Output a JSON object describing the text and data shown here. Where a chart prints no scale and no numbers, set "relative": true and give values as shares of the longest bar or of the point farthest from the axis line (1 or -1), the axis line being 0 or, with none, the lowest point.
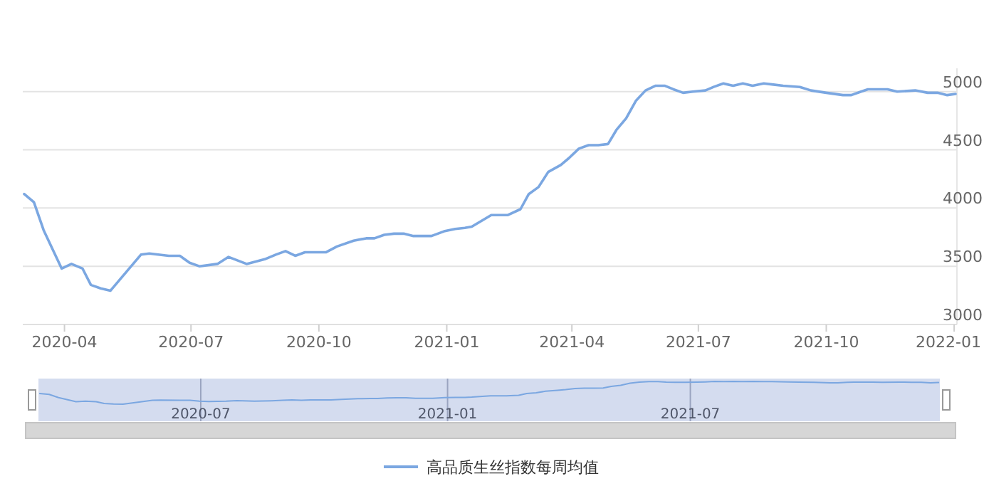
{
  "chart_data": [
    {
      "type": "line",
      "grid": "y",
      "legend": "bottom",
      "line_style": "solid",
      "marker": "none",
      "xlim": [
        "2020-03-02",
        "2022-01-03"
      ],
      "ylim": [
        3000,
        5200
      ],
      "xticks": [
        "2020-04",
        "2020-07",
        "2020-10",
        "2021-01",
        "2021-04",
        "2021-07",
        "2021-10",
        "2022-01"
      ],
      "yticks": [
        3000,
        3500,
        4000,
        4500,
        5000
      ],
      "series": [
        {
          "name": "高品质生丝指数每周均值",
          "color": "#7ba7e1",
          "x": [
            "2020-03-03",
            "2020-03-10",
            "2020-03-17",
            "2020-03-30",
            "2020-04-06",
            "2020-04-14",
            "2020-04-20",
            "2020-04-27",
            "2020-05-04",
            "2020-05-26",
            "2020-06-01",
            "2020-06-15",
            "2020-06-23",
            "2020-06-30",
            "2020-07-07",
            "2020-07-20",
            "2020-07-28",
            "2020-08-10",
            "2020-08-23",
            "2020-08-31",
            "2020-09-07",
            "2020-09-14",
            "2020-09-21",
            "2020-09-29",
            "2020-10-06",
            "2020-10-14",
            "2020-10-26",
            "2020-11-04",
            "2020-11-10",
            "2020-11-17",
            "2020-11-24",
            "2020-12-01",
            "2020-12-08",
            "2020-12-15",
            "2020-12-21",
            "2020-12-30",
            "2021-01-07",
            "2021-01-14",
            "2021-01-19",
            "2021-02-02",
            "2021-02-07",
            "2021-02-14",
            "2021-02-23",
            "2021-03-01",
            "2021-03-08",
            "2021-03-15",
            "2021-03-24",
            "2021-03-30",
            "2021-04-06",
            "2021-04-13",
            "2021-04-20",
            "2021-04-27",
            "2021-05-03",
            "2021-05-10",
            "2021-05-17",
            "2021-05-24",
            "2021-05-31",
            "2021-06-07",
            "2021-06-13",
            "2021-06-20",
            "2021-06-27",
            "2021-07-06",
            "2021-07-12",
            "2021-07-19",
            "2021-07-26",
            "2021-08-02",
            "2021-08-09",
            "2021-08-17",
            "2021-08-24",
            "2021-08-31",
            "2021-09-12",
            "2021-09-20",
            "2021-10-01",
            "2021-10-13",
            "2021-10-19",
            "2021-10-26",
            "2021-10-31",
            "2021-11-14",
            "2021-11-21",
            "2021-12-04",
            "2021-12-13",
            "2021-12-20",
            "2021-12-27",
            "2022-01-02"
          ],
          "values": [
            4120,
            4050,
            3810,
            3480,
            3520,
            3480,
            3340,
            3310,
            3290,
            3600,
            3610,
            3590,
            3590,
            3530,
            3500,
            3520,
            3580,
            3520,
            3560,
            3600,
            3630,
            3590,
            3620,
            3620,
            3620,
            3670,
            3720,
            3740,
            3740,
            3770,
            3780,
            3780,
            3760,
            3760,
            3760,
            3800,
            3820,
            3830,
            3840,
            3940,
            3940,
            3940,
            3990,
            4120,
            4180,
            4310,
            4370,
            4430,
            4510,
            4540,
            4540,
            4550,
            4670,
            4770,
            4920,
            5010,
            5050,
            5050,
            5020,
            4990,
            5000,
            5010,
            5040,
            5070,
            5050,
            5070,
            5050,
            5070,
            5060,
            5050,
            5040,
            5010,
            4990,
            4970,
            4970,
            5000,
            5020,
            5020,
            5000,
            5010,
            4990,
            4990,
            4970,
            4980
          ]
        }
      ]
    },
    {
      "type": "line",
      "tick_labels": "x",
      "grid": "x",
      "line_style": "solid",
      "marker": "none",
      "relative": true,
      "xlim": [
        "2020-03-02",
        "2022-01-03"
      ],
      "xticks": [
        "2020-07",
        "2021-01",
        "2021-07"
      ],
      "series": [
        {
          "color": "#7ba7e1",
          "x": [
            "2020-03-03",
            "2020-03-10",
            "2020-03-17",
            "2020-03-30",
            "2020-04-06",
            "2020-04-14",
            "2020-04-20",
            "2020-04-27",
            "2020-05-04",
            "2020-05-26",
            "2020-06-01",
            "2020-06-15",
            "2020-06-23",
            "2020-06-30",
            "2020-07-07",
            "2020-07-20",
            "2020-07-28",
            "2020-08-10",
            "2020-08-23",
            "2020-08-31",
            "2020-09-07",
            "2020-09-14",
            "2020-09-21",
            "2020-09-29",
            "2020-10-06",
            "2020-10-14",
            "2020-10-26",
            "2020-11-04",
            "2020-11-10",
            "2020-11-17",
            "2020-11-24",
            "2020-12-01",
            "2020-12-08",
            "2020-12-15",
            "2020-12-21",
            "2020-12-30",
            "2021-01-07",
            "2021-01-14",
            "2021-01-19",
            "2021-02-02",
            "2021-02-07",
            "2021-02-14",
            "2021-02-23",
            "2021-03-01",
            "2021-03-08",
            "2021-03-15",
            "2021-03-24",
            "2021-03-30",
            "2021-04-06",
            "2021-04-13",
            "2021-04-20",
            "2021-04-27",
            "2021-05-03",
            "2021-05-10",
            "2021-05-17",
            "2021-05-24",
            "2021-05-31",
            "2021-06-07",
            "2021-06-13",
            "2021-06-20",
            "2021-06-27",
            "2021-07-06",
            "2021-07-12",
            "2021-07-19",
            "2021-07-26",
            "2021-08-02",
            "2021-08-09",
            "2021-08-17",
            "2021-08-24",
            "2021-08-31",
            "2021-09-12",
            "2021-09-20",
            "2021-10-01",
            "2021-10-13",
            "2021-10-19",
            "2021-10-26",
            "2021-10-31",
            "2021-11-14",
            "2021-11-21",
            "2021-12-04",
            "2021-12-13",
            "2021-12-20",
            "2021-12-27",
            "2022-01-02"
          ],
          "values": [
            0.47,
            0.43,
            0.29,
            0.11,
            0.13,
            0.11,
            0.03,
            0.01,
            0,
            0.17,
            0.18,
            0.17,
            0.17,
            0.13,
            0.12,
            0.13,
            0.16,
            0.13,
            0.15,
            0.17,
            0.19,
            0.17,
            0.19,
            0.19,
            0.19,
            0.21,
            0.24,
            0.25,
            0.25,
            0.27,
            0.28,
            0.28,
            0.26,
            0.26,
            0.26,
            0.29,
            0.3,
            0.3,
            0.31,
            0.37,
            0.37,
            0.37,
            0.39,
            0.47,
            0.5,
            0.57,
            0.61,
            0.64,
            0.69,
            0.7,
            0.7,
            0.71,
            0.78,
            0.83,
            0.92,
            0.97,
            0.99,
            0.99,
            0.97,
            0.96,
            0.96,
            0.97,
            0.98,
            1,
            0.99,
            1,
            0.99,
            1,
            0.99,
            0.99,
            0.98,
            0.97,
            0.96,
            0.94,
            0.94,
            0.96,
            0.97,
            0.97,
            0.96,
            0.97,
            0.96,
            0.96,
            0.94,
            0.95
          ]
        }
      ]
    }
  ]
}
